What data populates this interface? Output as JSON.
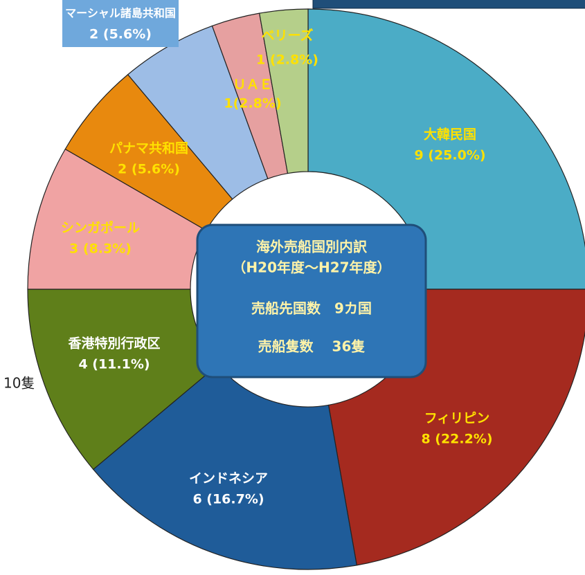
{
  "chart_data": {
    "type": "donut",
    "categories": [
      "大韓民国",
      "フィリピン",
      "インドネシア",
      "香港特別行政区",
      "シンガポール",
      "パナマ共和国",
      "マーシャル諸島共和国",
      "ＵＡＥ",
      "ベリーズ"
    ],
    "values": [
      9,
      8,
      6,
      4,
      3,
      2,
      2,
      1,
      1
    ],
    "value_labels": [
      "9 (25.0%)",
      "8 (22.2%)",
      "6 (16.7%)",
      "4 (11.1%)",
      "3 (8.3%)",
      "2 (5.6%)",
      "2 (5.6%)",
      "1(2.8%)",
      "1 (2.8%)"
    ],
    "colors": [
      "#4bacc6",
      "#a52a1f",
      "#1f5c99",
      "#5f7f1a",
      "#f0a3a3",
      "#e8890e",
      "#9dbde6",
      "#e6a0a0",
      "#b5cf8a"
    ],
    "label_colors": [
      "#ffe100",
      "#ffe100",
      "#ffffff",
      "#ffffff",
      "#ffe100",
      "#ffe100",
      "#ffffff",
      "#ffe100",
      "#ffe100"
    ],
    "center_text": [
      "海外売船国別内訳",
      "（H20年度～H27年度）",
      "売船先国数　9カ国",
      "売船隻数　 36隻"
    ],
    "annotation": "10隻"
  }
}
